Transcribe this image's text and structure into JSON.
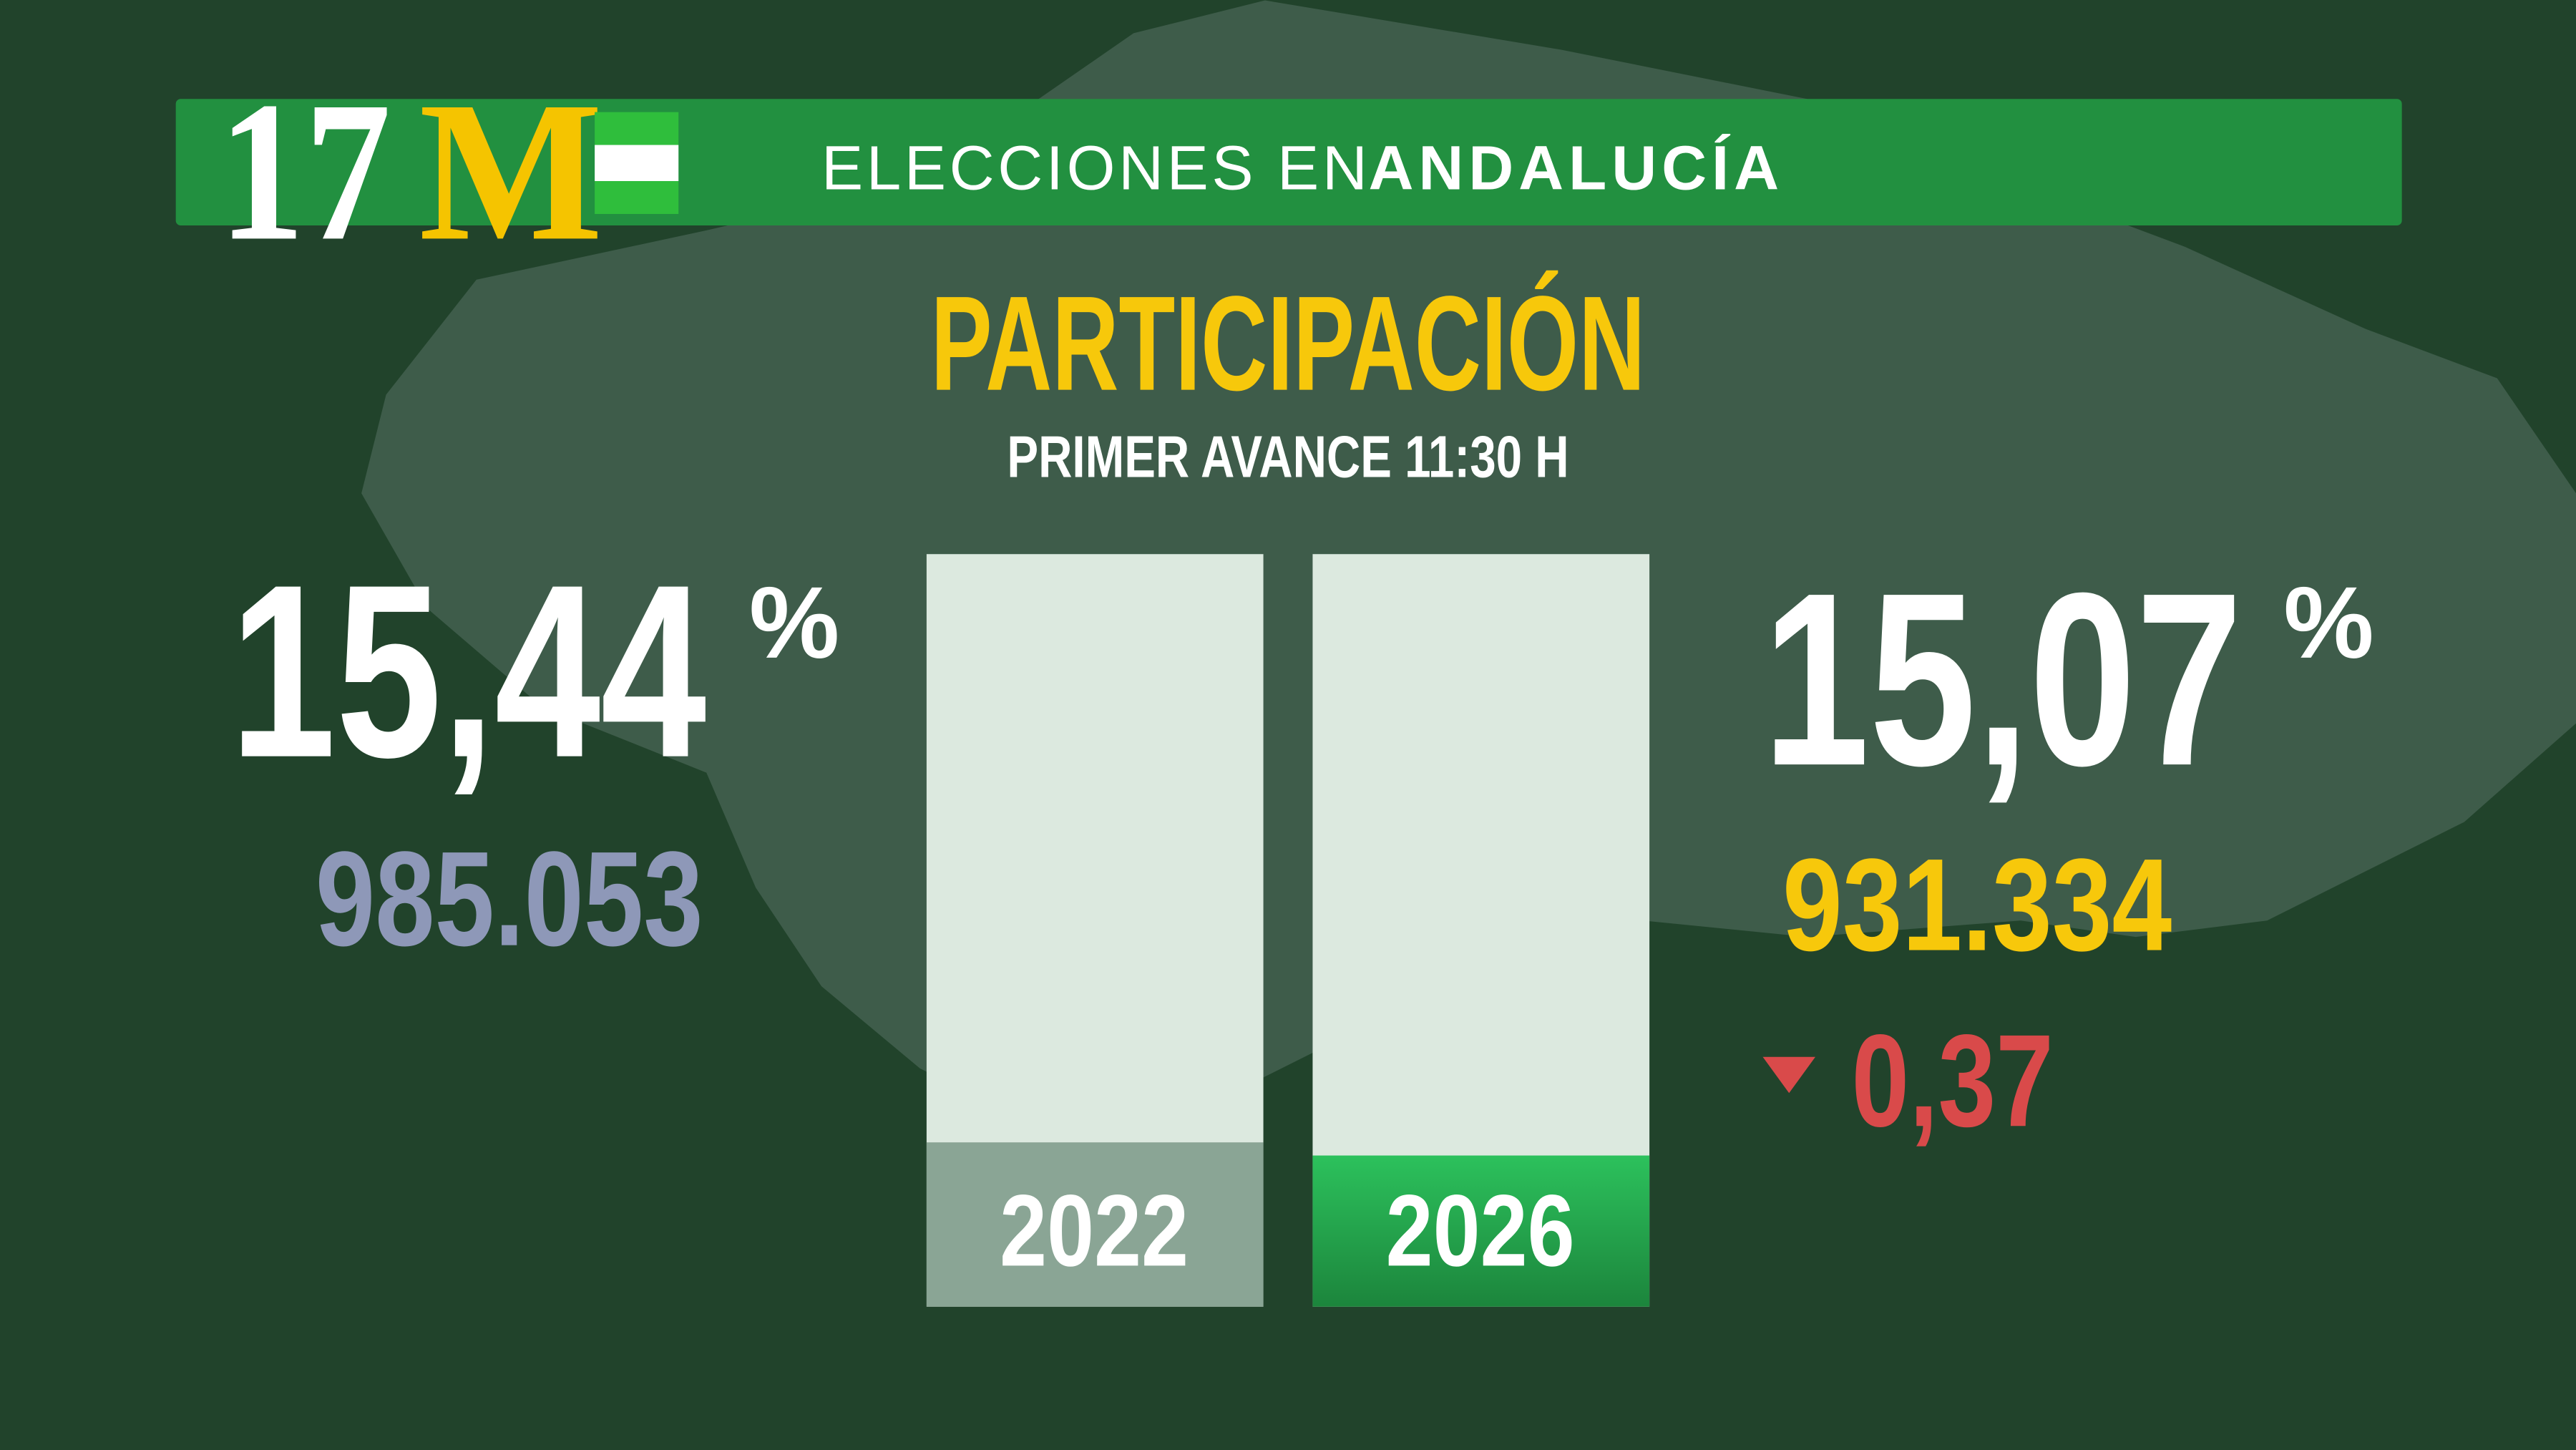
{
  "header": {
    "logo_number": "17",
    "logo_letter": "M",
    "title_prefix": "ELECCIONES EN",
    "title_bold": "ANDALUCÍA"
  },
  "title": "PARTICIPACIÓN",
  "subtitle": "PRIMER AVANCE 11:30 H",
  "left": {
    "percent": "15,44",
    "unit": "%",
    "votes": "985.053",
    "year": "2022"
  },
  "right": {
    "percent": "15,07",
    "unit": "%",
    "votes": "931.334",
    "year": "2026",
    "change": "0,37"
  }
}
